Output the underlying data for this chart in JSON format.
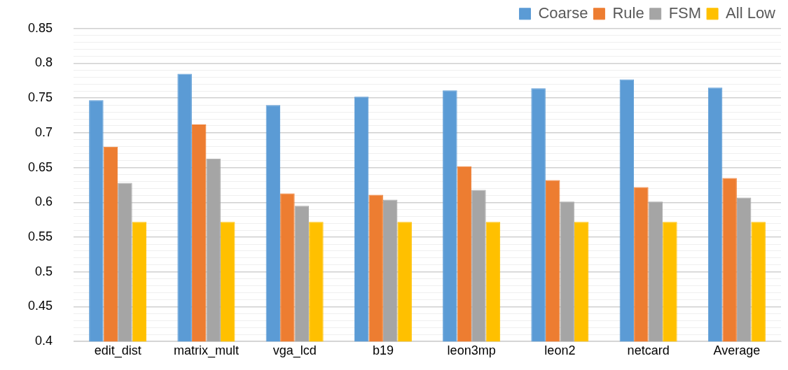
{
  "chart_data": {
    "type": "bar",
    "categories": [
      "edit_dist",
      "matrix_mult",
      "vga_lcd",
      "b19",
      "leon3mp",
      "leon2",
      "netcard",
      "Average"
    ],
    "series": [
      {
        "name": "Coarse",
        "color": "#5b9bd5",
        "values": [
          0.747,
          0.785,
          0.74,
          0.752,
          0.761,
          0.764,
          0.777,
          0.765
        ]
      },
      {
        "name": "Rule",
        "color": "#ed7d31",
        "values": [
          0.68,
          0.712,
          0.613,
          0.611,
          0.652,
          0.632,
          0.622,
          0.635
        ]
      },
      {
        "name": "FSM",
        "color": "#a5a5a5",
        "values": [
          0.628,
          0.663,
          0.595,
          0.604,
          0.618,
          0.601,
          0.601,
          0.607
        ]
      },
      {
        "name": "All Low",
        "color": "#ffc000",
        "values": [
          0.572,
          0.572,
          0.572,
          0.572,
          0.572,
          0.572,
          0.572,
          0.572
        ]
      }
    ],
    "ylim": [
      0.4,
      0.85
    ],
    "yticks": [
      "0.4",
      {
        "value": 0.41,
        "label": null
      },
      {
        "value": 0.42,
        "label": null
      },
      {
        "value": 0.43,
        "label": null
      },
      {
        "value": 0.44,
        "label": null
      },
      "0.45",
      {
        "value": 0.46,
        "label": null
      },
      {
        "value": 0.47,
        "label": null
      },
      {
        "value": 0.48,
        "label": null
      },
      {
        "value": 0.49,
        "label": null
      },
      0.5,
      {
        "value": 0.51,
        "label": null
      },
      {
        "value": 0.52,
        "label": null
      },
      {
        "value": 0.53,
        "label": null
      },
      {
        "value": 0.54,
        "label": null
      },
      0.55,
      {
        "value": 0.56,
        "label": null
      },
      {
        "value": 0.57,
        "label": null
      },
      {
        "value": 0.58,
        "label": null
      },
      {
        "value": 0.59,
        "label": null
      },
      0.6,
      {
        "value": 0.61,
        "label": null
      },
      {
        "value": 0.62,
        "label": null
      },
      {
        "value": 0.63,
        "label": null
      },
      {
        "value": 0.64,
        "label": null
      },
      0.65,
      {
        "value": 0.66,
        "label": null
      },
      {
        "value": 0.67,
        "label": null
      },
      {
        "value": 0.68,
        "label": null
      },
      {
        "value": 0.69,
        "label": null
      },
      0.7,
      {
        "value": 0.71,
        "label": null
      },
      {
        "value": 0.72,
        "label": null
      },
      {
        "value": 0.73,
        "label": null
      },
      {
        "value": 0.74,
        "label": null
      },
      0.75,
      {
        "value": 0.76,
        "label": null
      },
      {
        "value": 0.77,
        "label": null
      },
      {
        "value": 0.78,
        "label": null
      },
      {
        "value": 0.79,
        "label": null
      },
      0.8,
      {
        "value": 0.81,
        "label": null
      },
      {
        "value": 0.82,
        "label": null
      },
      {
        "value": 0.83,
        "label": null
      },
      {
        "value": 0.84,
        "label": null
      },
      0.85
    ],
    "grid": "y",
    "legend": "top right"
  }
}
